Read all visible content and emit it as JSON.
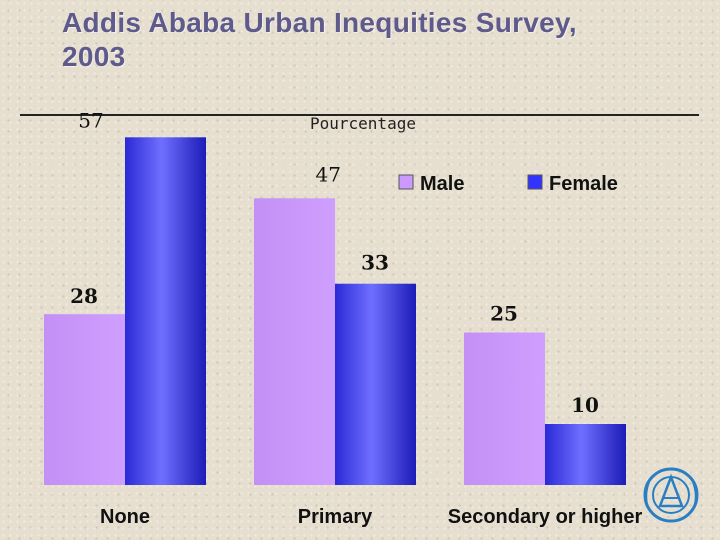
{
  "slide": {
    "title_line1": "Addis Ababa Urban Inequities Survey,",
    "title_line2": "2003"
  },
  "colors": {
    "title": "#5e5a8c",
    "male": "#cc99ff",
    "female": "#3333ff",
    "background": "#e6dfcf"
  },
  "icons": {
    "logo": "un-emblem-icon"
  },
  "chart_data": {
    "type": "bar",
    "title": "Pourcentage",
    "xlabel": "",
    "ylabel": "",
    "categories": [
      "None",
      "Primary",
      "Secondary or higher"
    ],
    "series": [
      {
        "name": "Male",
        "values": [
          28,
          47,
          25
        ],
        "color": "#cc99ff"
      },
      {
        "name": "Female",
        "values": [
          57,
          33,
          10
        ],
        "color": "#3333ff"
      }
    ],
    "ylim": [
      0,
      57
    ],
    "grid": false,
    "legend": "top-right"
  }
}
